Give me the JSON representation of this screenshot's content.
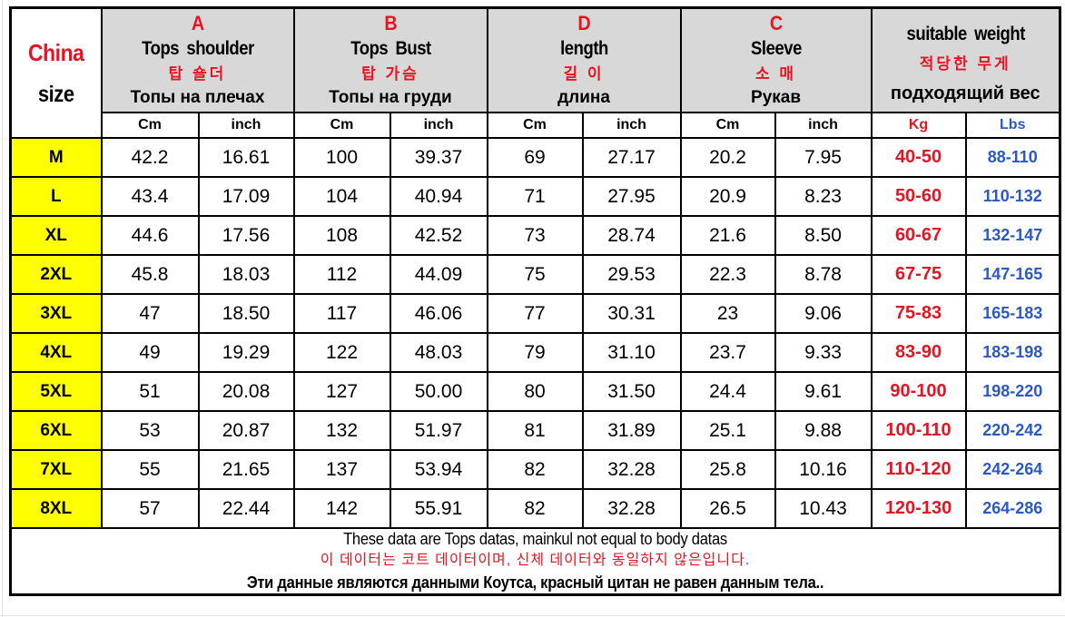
{
  "colors": {
    "accent_red": "#e61423",
    "accent_blue": "#2a58c8",
    "size_column_yellow": "#ffff00",
    "header_gray": "#d8d8d8"
  },
  "table": {
    "corner": {
      "line1": "China",
      "line2": "size"
    },
    "groups": [
      {
        "letter": "A",
        "en": "Tops shoulder",
        "ko": "탑 숄더",
        "ru": "Топы на плечах"
      },
      {
        "letter": "B",
        "en": "Tops Bust",
        "ko": "탑 가슴",
        "ru": "Топы на груди"
      },
      {
        "letter": "D",
        "en": "length",
        "ko": "길 이",
        "ru": "длина"
      },
      {
        "letter": "C",
        "en": "Sleeve",
        "ko": "소 매",
        "ru": "Рукав"
      },
      {
        "letter": "",
        "en": "suitable weight",
        "ko": "적당한 무게",
        "ru": "подходящий вес"
      }
    ],
    "units": [
      {
        "label": "Cm",
        "style": "black"
      },
      {
        "label": "inch",
        "style": "black"
      },
      {
        "label": "Cm",
        "style": "black"
      },
      {
        "label": "inch",
        "style": "black"
      },
      {
        "label": "Cm",
        "style": "black"
      },
      {
        "label": "inch",
        "style": "black"
      },
      {
        "label": "Cm",
        "style": "black"
      },
      {
        "label": "inch",
        "style": "black"
      },
      {
        "label": "Kg",
        "style": "red"
      },
      {
        "label": "Lbs",
        "style": "blue"
      }
    ],
    "rows": [
      {
        "size": "M",
        "values": [
          "42.2",
          "16.61",
          "100",
          "39.37",
          "69",
          "27.17",
          "20.2",
          "7.95"
        ],
        "kg": "40-50",
        "lbs": "88-110"
      },
      {
        "size": "L",
        "values": [
          "43.4",
          "17.09",
          "104",
          "40.94",
          "71",
          "27.95",
          "20.9",
          "8.23"
        ],
        "kg": "50-60",
        "lbs": "110-132"
      },
      {
        "size": "XL",
        "values": [
          "44.6",
          "17.56",
          "108",
          "42.52",
          "73",
          "28.74",
          "21.6",
          "8.50"
        ],
        "kg": "60-67",
        "lbs": "132-147"
      },
      {
        "size": "2XL",
        "values": [
          "45.8",
          "18.03",
          "112",
          "44.09",
          "75",
          "29.53",
          "22.3",
          "8.78"
        ],
        "kg": "67-75",
        "lbs": "147-165"
      },
      {
        "size": "3XL",
        "values": [
          "47",
          "18.50",
          "117",
          "46.06",
          "77",
          "30.31",
          "23",
          "9.06"
        ],
        "kg": "75-83",
        "lbs": "165-183"
      },
      {
        "size": "4XL",
        "values": [
          "49",
          "19.29",
          "122",
          "48.03",
          "79",
          "31.10",
          "23.7",
          "9.33"
        ],
        "kg": "83-90",
        "lbs": "183-198"
      },
      {
        "size": "5XL",
        "values": [
          "51",
          "20.08",
          "127",
          "50.00",
          "80",
          "31.50",
          "24.4",
          "9.61"
        ],
        "kg": "90-100",
        "lbs": "198-220"
      },
      {
        "size": "6XL",
        "values": [
          "53",
          "20.87",
          "132",
          "51.97",
          "81",
          "31.89",
          "25.1",
          "9.88"
        ],
        "kg": "100-110",
        "lbs": "220-242"
      },
      {
        "size": "7XL",
        "values": [
          "55",
          "21.65",
          "137",
          "53.94",
          "82",
          "32.28",
          "25.8",
          "10.16"
        ],
        "kg": "110-120",
        "lbs": "242-264"
      },
      {
        "size": "8XL",
        "values": [
          "57",
          "22.44",
          "142",
          "55.91",
          "82",
          "32.28",
          "26.5",
          "10.43"
        ],
        "kg": "120-130",
        "lbs": "264-286"
      }
    ]
  },
  "footer": {
    "en": "These data are Tops datas, mainkul not equal to body datas",
    "ko": "이 데이터는 코트 데이터이며, 신체 데이터와 동일하지 않은입니다.",
    "ru": "Эти данные являются данными Коутса, красный цитан не равен данным тела.."
  }
}
